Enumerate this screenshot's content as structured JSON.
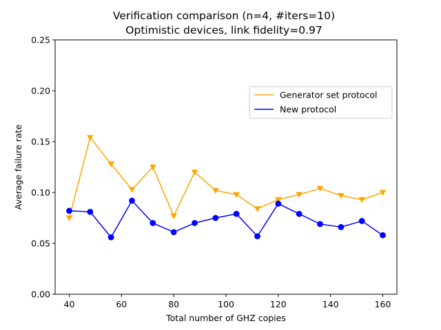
{
  "chart_data": {
    "type": "line",
    "title": "Verification comparison (n=4, #iters=10)",
    "subtitle": "Optimistic devices, link fidelity=0.97",
    "xlabel": "Total number of GHZ copies",
    "ylabel": "Average failure rate",
    "xlim": [
      34.6,
      165.4
    ],
    "ylim": [
      0.0,
      0.25
    ],
    "xticks": [
      40,
      60,
      80,
      100,
      120,
      140,
      160
    ],
    "xtick_labels": [
      "40",
      "60",
      "80",
      "100",
      "120",
      "140",
      "160"
    ],
    "yticks": [
      0.0,
      0.05,
      0.1,
      0.15,
      0.2,
      0.25
    ],
    "ytick_labels": [
      "0.00",
      "0.05",
      "0.10",
      "0.15",
      "0.20",
      "0.25"
    ],
    "grid": false,
    "legend_position": "right",
    "x": [
      40,
      48,
      56,
      64,
      72,
      80,
      88,
      96,
      104,
      112,
      120,
      128,
      136,
      144,
      152,
      160
    ],
    "series": [
      {
        "name": "Generator set protocol",
        "color": "#FFA500",
        "marker": "triangle-down",
        "values": [
          0.075,
          0.154,
          0.128,
          0.103,
          0.125,
          0.077,
          0.12,
          0.102,
          0.098,
          0.084,
          0.093,
          0.098,
          0.104,
          0.097,
          0.093,
          0.1
        ]
      },
      {
        "name": "New protocol",
        "color": "#0000FF",
        "marker": "circle",
        "values": [
          0.082,
          0.081,
          0.056,
          0.092,
          0.07,
          0.061,
          0.07,
          0.075,
          0.079,
          0.057,
          0.089,
          0.079,
          0.069,
          0.066,
          0.072,
          0.058
        ]
      }
    ]
  }
}
